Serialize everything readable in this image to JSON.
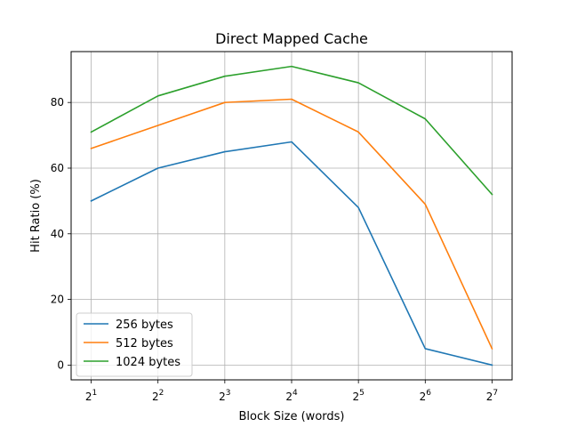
{
  "chart_data": {
    "type": "line",
    "title": "Direct Mapped Cache",
    "xlabel": "Block Size (words)",
    "ylabel": "Hit Ratio (%)",
    "x": [
      1,
      2,
      3,
      4,
      5,
      6,
      7
    ],
    "x_scale": "log2",
    "x_tick_base": "2",
    "x_tick_exponents": [
      "1",
      "2",
      "3",
      "4",
      "5",
      "6",
      "7"
    ],
    "y_ticks": [
      0,
      20,
      40,
      60,
      80
    ],
    "y_tick_labels": [
      "0",
      "20",
      "40",
      "60",
      "80"
    ],
    "xlim": [
      0.7,
      7.3
    ],
    "ylim": [
      -4.5,
      95.5
    ],
    "grid": true,
    "legend_position": "lower-left",
    "series": [
      {
        "name": "256 bytes",
        "color": "#1f77b4",
        "values": [
          50,
          60,
          65,
          68,
          48,
          5,
          0
        ]
      },
      {
        "name": "512 bytes",
        "color": "#ff7f0e",
        "values": [
          66,
          73,
          80,
          81,
          71,
          49,
          5
        ]
      },
      {
        "name": "1024 bytes",
        "color": "#2ca02c",
        "values": [
          71,
          82,
          88,
          91,
          86,
          75,
          52
        ]
      }
    ]
  }
}
